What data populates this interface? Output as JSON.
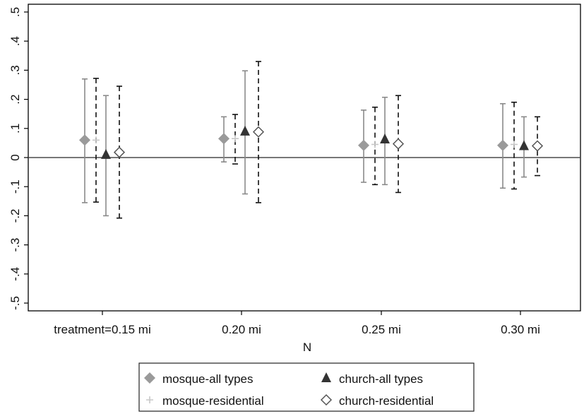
{
  "chart_data": {
    "type": "scatter",
    "subtype": "point-estimates-with-confidence-intervals",
    "title": "",
    "xlabel": "N",
    "ylabel": "",
    "categories": [
      "treatment=0.15 mi",
      "0.20 mi",
      "0.25 mi",
      "0.30 mi"
    ],
    "yticks": [
      ".5",
      ".4",
      ".3",
      ".2",
      ".1",
      "0",
      "-.1",
      "-.2",
      "-.3",
      "-.4",
      "-.5"
    ],
    "ylim": [
      -0.5,
      0.5
    ],
    "zero_line": true,
    "grid": false,
    "legend_position": "bottom",
    "series": [
      {
        "name": "mosque-all types",
        "marker": "diamond-filled",
        "color": "#9a9a9a",
        "whisker_color": "#8a8a8a",
        "whisker_style": "solid",
        "values": [
          0.06,
          0.065,
          0.042,
          0.042
        ],
        "lower": [
          -0.155,
          -0.015,
          -0.085,
          -0.105
        ],
        "upper": [
          0.27,
          0.14,
          0.163,
          0.185
        ]
      },
      {
        "name": "mosque-residential",
        "marker": "plus",
        "color": "#c8c8c8",
        "whisker_color": "#111111",
        "whisker_style": "dashed",
        "values": [
          0.06,
          0.065,
          0.045,
          0.045
        ],
        "lower": [
          -0.153,
          -0.022,
          -0.093,
          -0.108
        ],
        "upper": [
          0.272,
          0.148,
          0.173,
          0.19
        ]
      },
      {
        "name": "church-all types",
        "marker": "triangle-filled",
        "color": "#333333",
        "whisker_color": "#8a8a8a",
        "whisker_style": "solid",
        "values": [
          0.01,
          0.09,
          0.063,
          0.04
        ],
        "lower": [
          -0.2,
          -0.125,
          -0.093,
          -0.067
        ],
        "upper": [
          0.213,
          0.298,
          0.207,
          0.14
        ]
      },
      {
        "name": "church-residential",
        "marker": "diamond-hollow",
        "color": "#555555",
        "whisker_color": "#111111",
        "whisker_style": "dashed",
        "values": [
          0.018,
          0.088,
          0.047,
          0.04
        ],
        "lower": [
          -0.208,
          -0.155,
          -0.12,
          -0.062
        ],
        "upper": [
          0.245,
          0.33,
          0.213,
          0.14
        ]
      }
    ]
  }
}
